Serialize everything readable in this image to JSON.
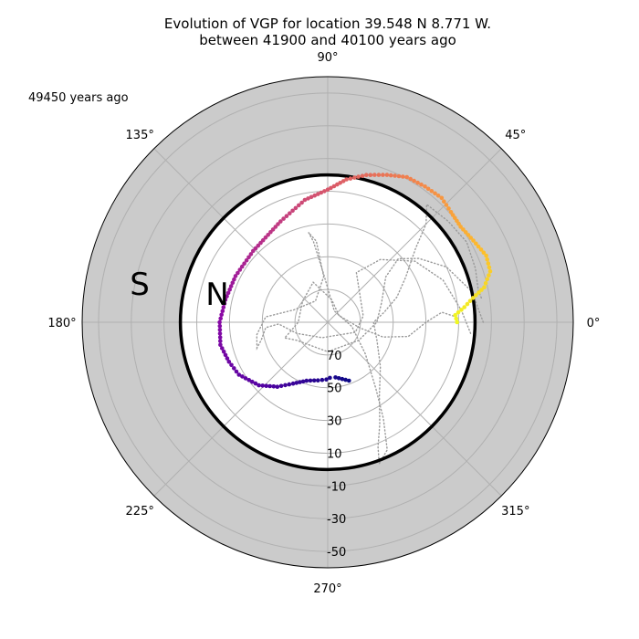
{
  "chart_data": {
    "type": "scatter",
    "projection": "polar",
    "title": "Evolution of VGP for location 39.548 N 8.771 W.",
    "subtitle": "between 41900 and 40100 years ago",
    "corner_label": "49450 years ago",
    "theta_tick_labels": [
      {
        "deg": 0,
        "label": "0°"
      },
      {
        "deg": 45,
        "label": "45°"
      },
      {
        "deg": 90,
        "label": "90°"
      },
      {
        "deg": 135,
        "label": "135°"
      },
      {
        "deg": 180,
        "label": "180°"
      },
      {
        "deg": 225,
        "label": "225°"
      },
      {
        "deg": 270,
        "label": "270°"
      },
      {
        "deg": 315,
        "label": "315°"
      }
    ],
    "radial_ticks": [
      70,
      50,
      30,
      10,
      -10,
      -30,
      -50
    ],
    "radial_range": [
      -60,
      90
    ],
    "equator_latitude": 0,
    "hemisphere_labels": {
      "south": "S",
      "north": "N"
    },
    "grid": true,
    "colors": {
      "southern_band": "#cbcbcb",
      "equator_circle": "#000000",
      "grid": "#b0b0b0",
      "background_track": "#9a9a9a",
      "colormap": "plasma"
    },
    "highlighted_path": [
      {
        "lon": 0.0,
        "lat": 11
      },
      {
        "lon": 3.2,
        "lat": 12
      },
      {
        "lon": 6.3,
        "lat": 6
      },
      {
        "lon": 9.5,
        "lat": 0
      },
      {
        "lon": 12.6,
        "lat": -8
      },
      {
        "lon": 17.4,
        "lat": -14
      },
      {
        "lon": 22.8,
        "lat": -15
      },
      {
        "lon": 29.3,
        "lat": -12
      },
      {
        "lon": 35.7,
        "lat": -10
      },
      {
        "lon": 41.8,
        "lat": -11
      },
      {
        "lon": 47.5,
        "lat": -13
      },
      {
        "lon": 54.4,
        "lat": -12
      },
      {
        "lon": 61.4,
        "lat": -11
      },
      {
        "lon": 68.1,
        "lat": -7
      },
      {
        "lon": 75.3,
        "lat": -3
      },
      {
        "lon": 82.5,
        "lat": 2
      },
      {
        "lon": 90.0,
        "lat": 9
      },
      {
        "lon": 100.6,
        "lat": 14
      },
      {
        "lon": 115.1,
        "lat": 22
      },
      {
        "lon": 136.3,
        "lat": 27
      },
      {
        "lon": 153.4,
        "lat": 27
      },
      {
        "lon": 167.6,
        "lat": 26
      },
      {
        "lon": 180.0,
        "lat": 24
      },
      {
        "lon": 191.9,
        "lat": 23
      },
      {
        "lon": 201.8,
        "lat": 25
      },
      {
        "lon": 210.6,
        "lat": 27
      },
      {
        "lon": 222.5,
        "lat": 33
      },
      {
        "lon": 232.0,
        "lat": 40
      },
      {
        "lon": 240.6,
        "lat": 47
      },
      {
        "lon": 250.1,
        "lat": 52
      },
      {
        "lon": 260.5,
        "lat": 54
      },
      {
        "lon": 268.6,
        "lat": 55
      },
      {
        "lon": 272.3,
        "lat": 56
      },
      {
        "lon": 278.0,
        "lat": 56
      },
      {
        "lon": 290.0,
        "lat": 52
      }
    ],
    "background_track": [
      {
        "lon": 9,
        "lat": -5
      },
      {
        "lon": 12,
        "lat": -4
      },
      {
        "lon": 20,
        "lat": -6
      },
      {
        "lon": 30,
        "lat": -8
      },
      {
        "lon": 40,
        "lat": -6
      },
      {
        "lon": 50,
        "lat": -4
      },
      {
        "lon": 45,
        "lat": 5
      },
      {
        "lon": 40,
        "lat": 20
      },
      {
        "lon": 30,
        "lat": 35
      },
      {
        "lon": 20,
        "lat": 45
      },
      {
        "lon": 10,
        "lat": 55
      },
      {
        "lon": 0,
        "lat": 62
      },
      {
        "lon": 340,
        "lat": 58
      },
      {
        "lon": 320,
        "lat": 48
      },
      {
        "lon": 305,
        "lat": 35
      },
      {
        "lon": 297,
        "lat": 20
      },
      {
        "lon": 292,
        "lat": 8
      },
      {
        "lon": 290,
        "lat": -2
      },
      {
        "lon": 295,
        "lat": 4
      },
      {
        "lon": 300,
        "lat": 22
      },
      {
        "lon": 306,
        "lat": 40
      },
      {
        "lon": 320,
        "lat": 60
      },
      {
        "lon": 350,
        "lat": 75
      },
      {
        "lon": 60,
        "lat": 82
      },
      {
        "lon": 95,
        "lat": 60
      },
      {
        "lon": 100,
        "lat": 40
      },
      {
        "lon": 102,
        "lat": 34
      },
      {
        "lon": 98,
        "lat": 40
      },
      {
        "lon": 95,
        "lat": 62
      },
      {
        "lon": 120,
        "lat": 75
      },
      {
        "lon": 160,
        "lat": 68
      },
      {
        "lon": 175,
        "lat": 52
      },
      {
        "lon": 190,
        "lat": 46
      },
      {
        "lon": 200,
        "lat": 44
      },
      {
        "lon": 195,
        "lat": 48
      },
      {
        "lon": 185,
        "lat": 52
      },
      {
        "lon": 182,
        "lat": 60
      },
      {
        "lon": 200,
        "lat": 70
      },
      {
        "lon": 250,
        "lat": 80
      },
      {
        "lon": 340,
        "lat": 72
      },
      {
        "lon": 10,
        "lat": 68
      },
      {
        "lon": 60,
        "lat": 55
      },
      {
        "lon": 50,
        "lat": 40
      },
      {
        "lon": 35,
        "lat": 25
      },
      {
        "lon": 20,
        "lat": 15
      },
      {
        "lon": 5,
        "lat": 8
      },
      {
        "lon": 355,
        "lat": 2
      }
    ],
    "background_track_2": [
      {
        "lon": 0,
        "lat": -5
      },
      {
        "lon": 12,
        "lat": 0
      },
      {
        "lon": 25,
        "lat": 10
      },
      {
        "lon": 35,
        "lat": 22
      },
      {
        "lon": 42,
        "lat": 32
      },
      {
        "lon": 38,
        "lat": 45
      },
      {
        "lon": 20,
        "lat": 55
      },
      {
        "lon": 0,
        "lat": 60
      },
      {
        "lon": 330,
        "lat": 68
      },
      {
        "lon": 270,
        "lat": 72
      },
      {
        "lon": 210,
        "lat": 68
      },
      {
        "lon": 200,
        "lat": 62
      },
      {
        "lon": 195,
        "lat": 66
      },
      {
        "lon": 180,
        "lat": 72
      },
      {
        "lon": 140,
        "lat": 70
      },
      {
        "lon": 110,
        "lat": 64
      },
      {
        "lon": 80,
        "lat": 76
      },
      {
        "lon": 30,
        "lat": 82
      },
      {
        "lon": 350,
        "lat": 70
      },
      {
        "lon": 345,
        "lat": 55
      },
      {
        "lon": 350,
        "lat": 40
      },
      {
        "lon": 0,
        "lat": 30
      },
      {
        "lon": 5,
        "lat": 20
      },
      {
        "lon": 2,
        "lat": 10
      }
    ]
  }
}
